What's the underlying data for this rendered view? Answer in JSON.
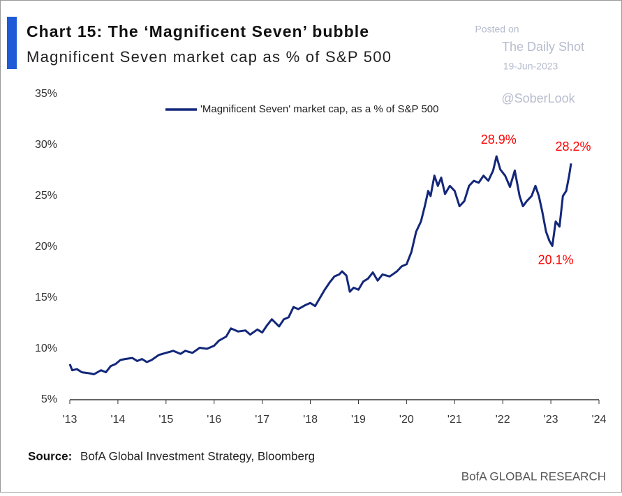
{
  "chart_data": {
    "type": "line",
    "title": "Chart 15: The ‘Magnificent Seven’ bubble",
    "subtitle": "Magnificent Seven market cap as % of S&P 500",
    "source_label": "Source:",
    "source": "BofA Global Investment Strategy, Bloomberg",
    "brand": "BofA GLOBAL RESEARCH",
    "watermark": [
      "Posted on",
      "The Daily Shot",
      "19-Jun-2023",
      "@SoberLook"
    ],
    "legend": "top-center",
    "xlim": [
      2013,
      2024
    ],
    "ylim": [
      5,
      35
    ],
    "xticks": [
      {
        "value": 2013,
        "label": "'13"
      },
      {
        "value": 2014,
        "label": "'14"
      },
      {
        "value": 2015,
        "label": "'15"
      },
      {
        "value": 2016,
        "label": "'16"
      },
      {
        "value": 2017,
        "label": "'17"
      },
      {
        "value": 2018,
        "label": "'18"
      },
      {
        "value": 2019,
        "label": "'19"
      },
      {
        "value": 2020,
        "label": "'20"
      },
      {
        "value": 2021,
        "label": "'21"
      },
      {
        "value": 2022,
        "label": "'22"
      },
      {
        "value": 2023,
        "label": "'23"
      },
      {
        "value": 2024,
        "label": "'24"
      }
    ],
    "yticks": [
      {
        "value": 5,
        "label": "5%"
      },
      {
        "value": 10,
        "label": "10%"
      },
      {
        "value": 15,
        "label": "15%"
      },
      {
        "value": 20,
        "label": "20%"
      },
      {
        "value": 25,
        "label": "25%"
      },
      {
        "value": 30,
        "label": "30%"
      },
      {
        "value": 35,
        "label": "35%"
      }
    ],
    "x": [
      2013.0,
      2013.05,
      2013.15,
      2013.25,
      2013.4,
      2013.5,
      2013.65,
      2013.75,
      2013.85,
      2013.95,
      2014.05,
      2014.15,
      2014.3,
      2014.4,
      2014.5,
      2014.6,
      2014.7,
      2014.85,
      2015.0,
      2015.15,
      2015.3,
      2015.4,
      2015.55,
      2015.7,
      2015.85,
      2016.0,
      2016.1,
      2016.25,
      2016.35,
      2016.5,
      2016.65,
      2016.75,
      2016.9,
      2017.0,
      2017.1,
      2017.2,
      2017.35,
      2017.45,
      2017.55,
      2017.65,
      2017.75,
      2017.9,
      2018.0,
      2018.1,
      2018.2,
      2018.3,
      2018.4,
      2018.5,
      2018.6,
      2018.66,
      2018.75,
      2018.82,
      2018.9,
      2019.0,
      2019.1,
      2019.2,
      2019.3,
      2019.4,
      2019.5,
      2019.65,
      2019.8,
      2019.9,
      2020.0,
      2020.1,
      2020.2,
      2020.3,
      2020.38,
      2020.45,
      2020.5,
      2020.58,
      2020.65,
      2020.72,
      2020.8,
      2020.9,
      2021.0,
      2021.1,
      2021.2,
      2021.3,
      2021.4,
      2021.5,
      2021.6,
      2021.7,
      2021.8,
      2021.87,
      2021.95,
      2022.05,
      2022.15,
      2022.25,
      2022.35,
      2022.42,
      2022.5,
      2022.6,
      2022.68,
      2022.75,
      2022.82,
      2022.9,
      2022.97,
      2023.03,
      2023.1,
      2023.18,
      2023.25,
      2023.32,
      2023.38,
      2023.42
    ],
    "series": [
      {
        "name": "'Magnificent Seven' market cap, as a % of S&P 500",
        "color": "#13277a",
        "values": [
          8.5,
          7.9,
          8.0,
          7.7,
          7.6,
          7.5,
          7.9,
          7.7,
          8.3,
          8.5,
          8.9,
          9.0,
          9.1,
          8.8,
          9.0,
          8.7,
          8.9,
          9.4,
          9.6,
          9.8,
          9.5,
          9.8,
          9.6,
          10.1,
          10.0,
          10.3,
          10.8,
          11.2,
          12.0,
          11.7,
          11.8,
          11.4,
          11.9,
          11.6,
          12.3,
          12.9,
          12.2,
          12.9,
          13.1,
          14.1,
          13.9,
          14.3,
          14.5,
          14.2,
          15.0,
          15.8,
          16.5,
          17.1,
          17.3,
          17.6,
          17.2,
          15.6,
          16.0,
          15.8,
          16.6,
          16.9,
          17.5,
          16.7,
          17.3,
          17.1,
          17.6,
          18.1,
          18.3,
          19.5,
          21.5,
          22.5,
          24.0,
          25.5,
          25.0,
          27.0,
          26.0,
          26.8,
          25.2,
          26.0,
          25.5,
          24.0,
          24.5,
          26.0,
          26.5,
          26.3,
          27.0,
          26.5,
          27.5,
          28.9,
          27.6,
          27.0,
          25.9,
          27.5,
          25.0,
          24.0,
          24.5,
          25.0,
          26.0,
          25.0,
          23.5,
          21.5,
          20.6,
          20.1,
          22.5,
          22.0,
          25.0,
          25.5,
          27.0,
          28.2
        ]
      }
    ],
    "annotations": [
      {
        "x": 2021.87,
        "value": 28.9,
        "label": "28.9%",
        "position": "above",
        "color": "#ff0000"
      },
      {
        "x": 2023.42,
        "value": 28.2,
        "label": "28.2%",
        "position": "above",
        "color": "#ff0000"
      },
      {
        "x": 2023.03,
        "value": 20.1,
        "label": "20.1%",
        "position": "below",
        "color": "#ff0000"
      }
    ]
  }
}
